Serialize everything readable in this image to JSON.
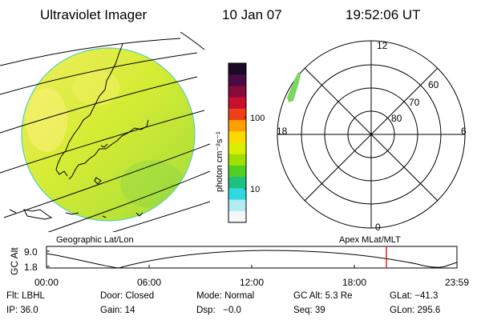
{
  "header": {
    "title": "Ultraviolet Imager",
    "date": "10 Jan 07",
    "time": "19:52:06 UT"
  },
  "image_panel": {
    "label": "Geographic Lat/Lon"
  },
  "colorbar": {
    "unit_label": "photon cm⁻²s⁻¹",
    "tick_labels": [
      "100",
      "10"
    ],
    "colors_top_to_bottom": [
      "#1a0a26",
      "#4a0a46",
      "#8a0a3a",
      "#c8102e",
      "#f0401a",
      "#ffa000",
      "#ffd800",
      "#d8f000",
      "#a0e000",
      "#50d020",
      "#20c080",
      "#30d8e0",
      "#b0ecf4",
      "#f4f8fa"
    ]
  },
  "polar_plot": {
    "label": "Apex MLat/MLT",
    "mlt_labels": {
      "top": "12",
      "left": "18",
      "right": "6",
      "bottom": "0"
    },
    "lat_labels": [
      "60",
      "70",
      "80"
    ]
  },
  "altitude_plot": {
    "ylabel": "GC Alt",
    "ytick_max": "9.0",
    "ytick_min": "1.8",
    "xtick_labels": [
      "00:00",
      "06:00",
      "12:00",
      "18:00",
      "23:59"
    ],
    "current_time_color": "#e00000"
  },
  "info": {
    "filter": "Flt: LBHL",
    "door": "Door: Closed",
    "mode": "Mode: Normal",
    "gc_alt": "GC Alt: 5.3 Re",
    "glat": "GLat: −41.3",
    "ip": "IP: 36.0",
    "gain": "Gain: 14",
    "dsp": "Dsp:   −0.0",
    "seq": "Seq: 39",
    "glon": "GLon: 295.6"
  }
}
